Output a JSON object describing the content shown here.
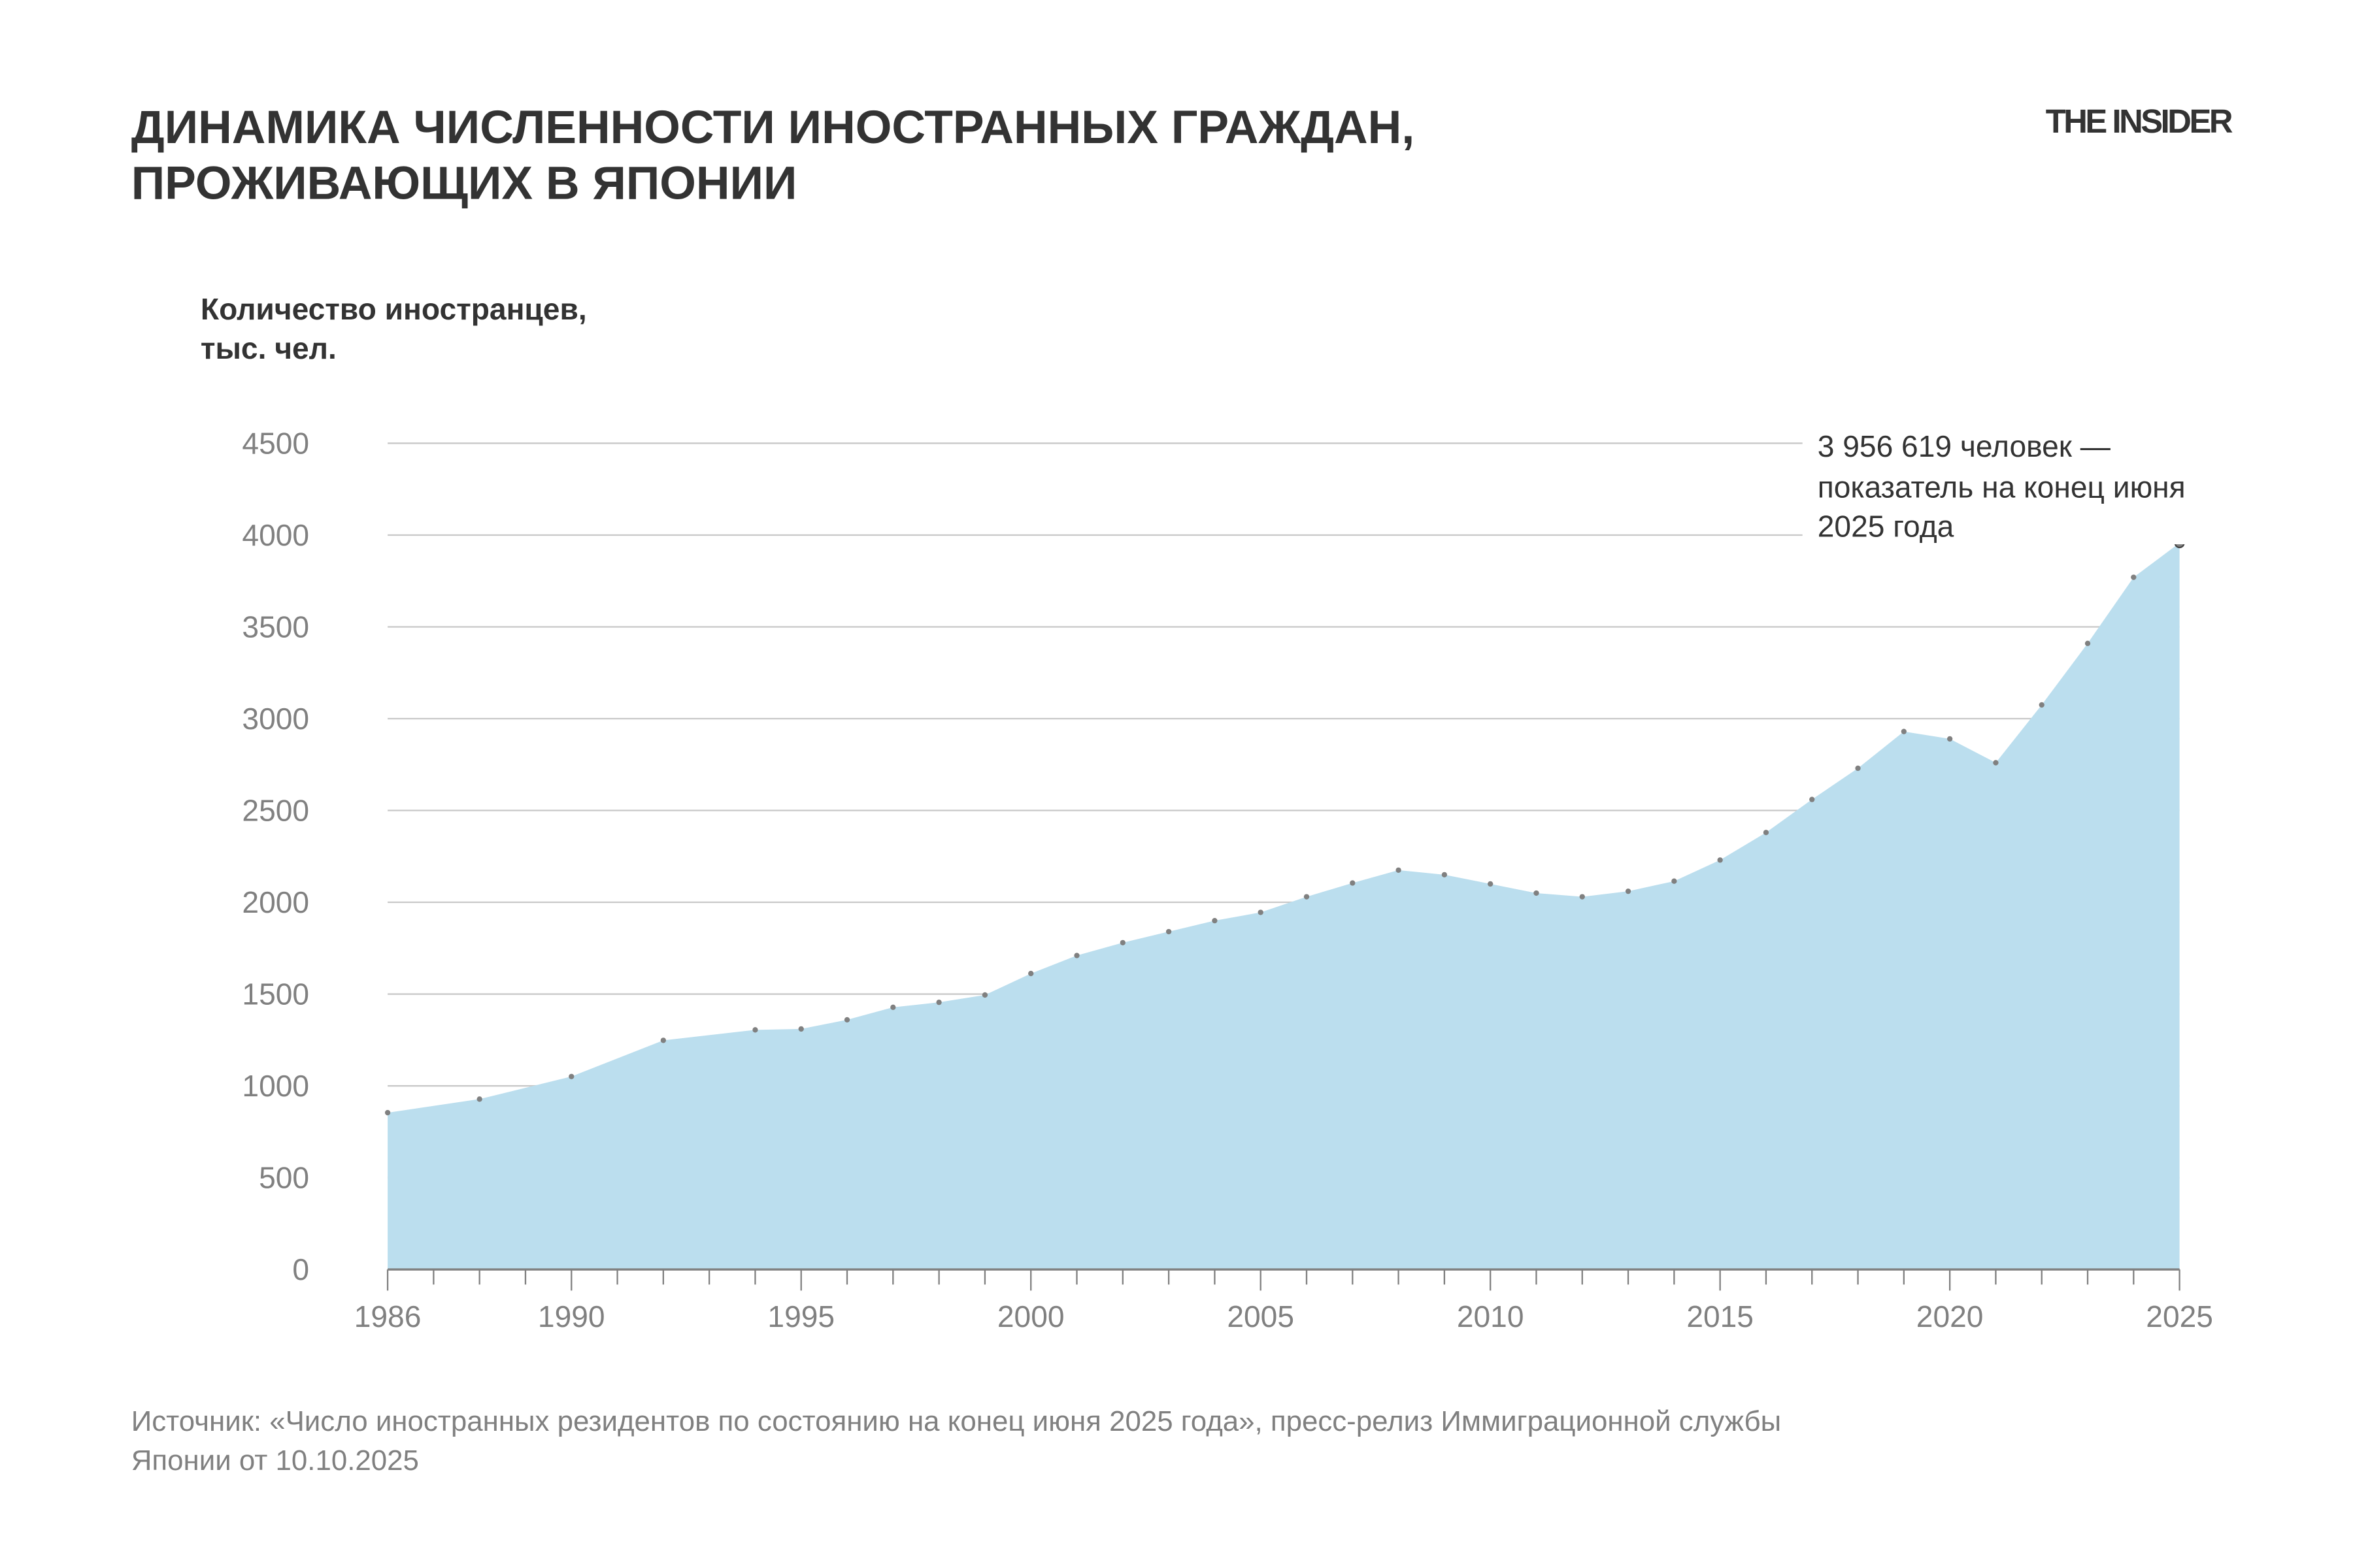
{
  "header": {
    "title_line1": "ДИНАМИКА ЧИСЛЕННОСТИ ИНОСТРАННЫХ ГРАЖДАН,",
    "title_line2": "ПРОЖИВАЮЩИХ В ЯПОНИИ",
    "logo": "THE INSIDER"
  },
  "footer": {
    "source_line1": "Источник: «Число иностранных резидентов по состоянию на конец июня 2025 года», пресс-релиз Иммиграционной службы",
    "source_line2": "Японии от 10.10.2025"
  },
  "chart_data": {
    "type": "area",
    "ylabel_line1": "Количество иностранцев,",
    "ylabel_line2": "тыс. чел.",
    "ylim": [
      0,
      4500
    ],
    "yticks": [
      0,
      500,
      1000,
      1500,
      2000,
      2500,
      3000,
      3500,
      4000,
      4500
    ],
    "xlim": [
      1986,
      2025
    ],
    "xticks": [
      1986,
      1990,
      1995,
      2000,
      2005,
      2010,
      2015,
      2020,
      2025
    ],
    "grid": true,
    "fill_color": "#bbdeee",
    "marker_color": "#808080",
    "x": [
      1986,
      1988,
      1990,
      1992,
      1994,
      1995,
      1996,
      1997,
      1998,
      1999,
      2000,
      2001,
      2002,
      2003,
      2004,
      2005,
      2006,
      2007,
      2008,
      2009,
      2010,
      2011,
      2012,
      2013,
      2014,
      2015,
      2016,
      2017,
      2018,
      2019,
      2020,
      2021,
      2022,
      2023,
      2024,
      2025
    ],
    "values": [
      854,
      928,
      1051,
      1248,
      1305,
      1310,
      1360,
      1428,
      1455,
      1495,
      1612,
      1710,
      1780,
      1840,
      1900,
      1945,
      2030,
      2105,
      2175,
      2150,
      2100,
      2050,
      2030,
      2060,
      2115,
      2230,
      2380,
      2560,
      2730,
      2930,
      2890,
      2760,
      3075,
      3410,
      3770,
      3957
    ],
    "annotation": {
      "line1": "3 956 619 человек —",
      "line2": "показатель на конец июня",
      "line3": "2025 года"
    }
  }
}
